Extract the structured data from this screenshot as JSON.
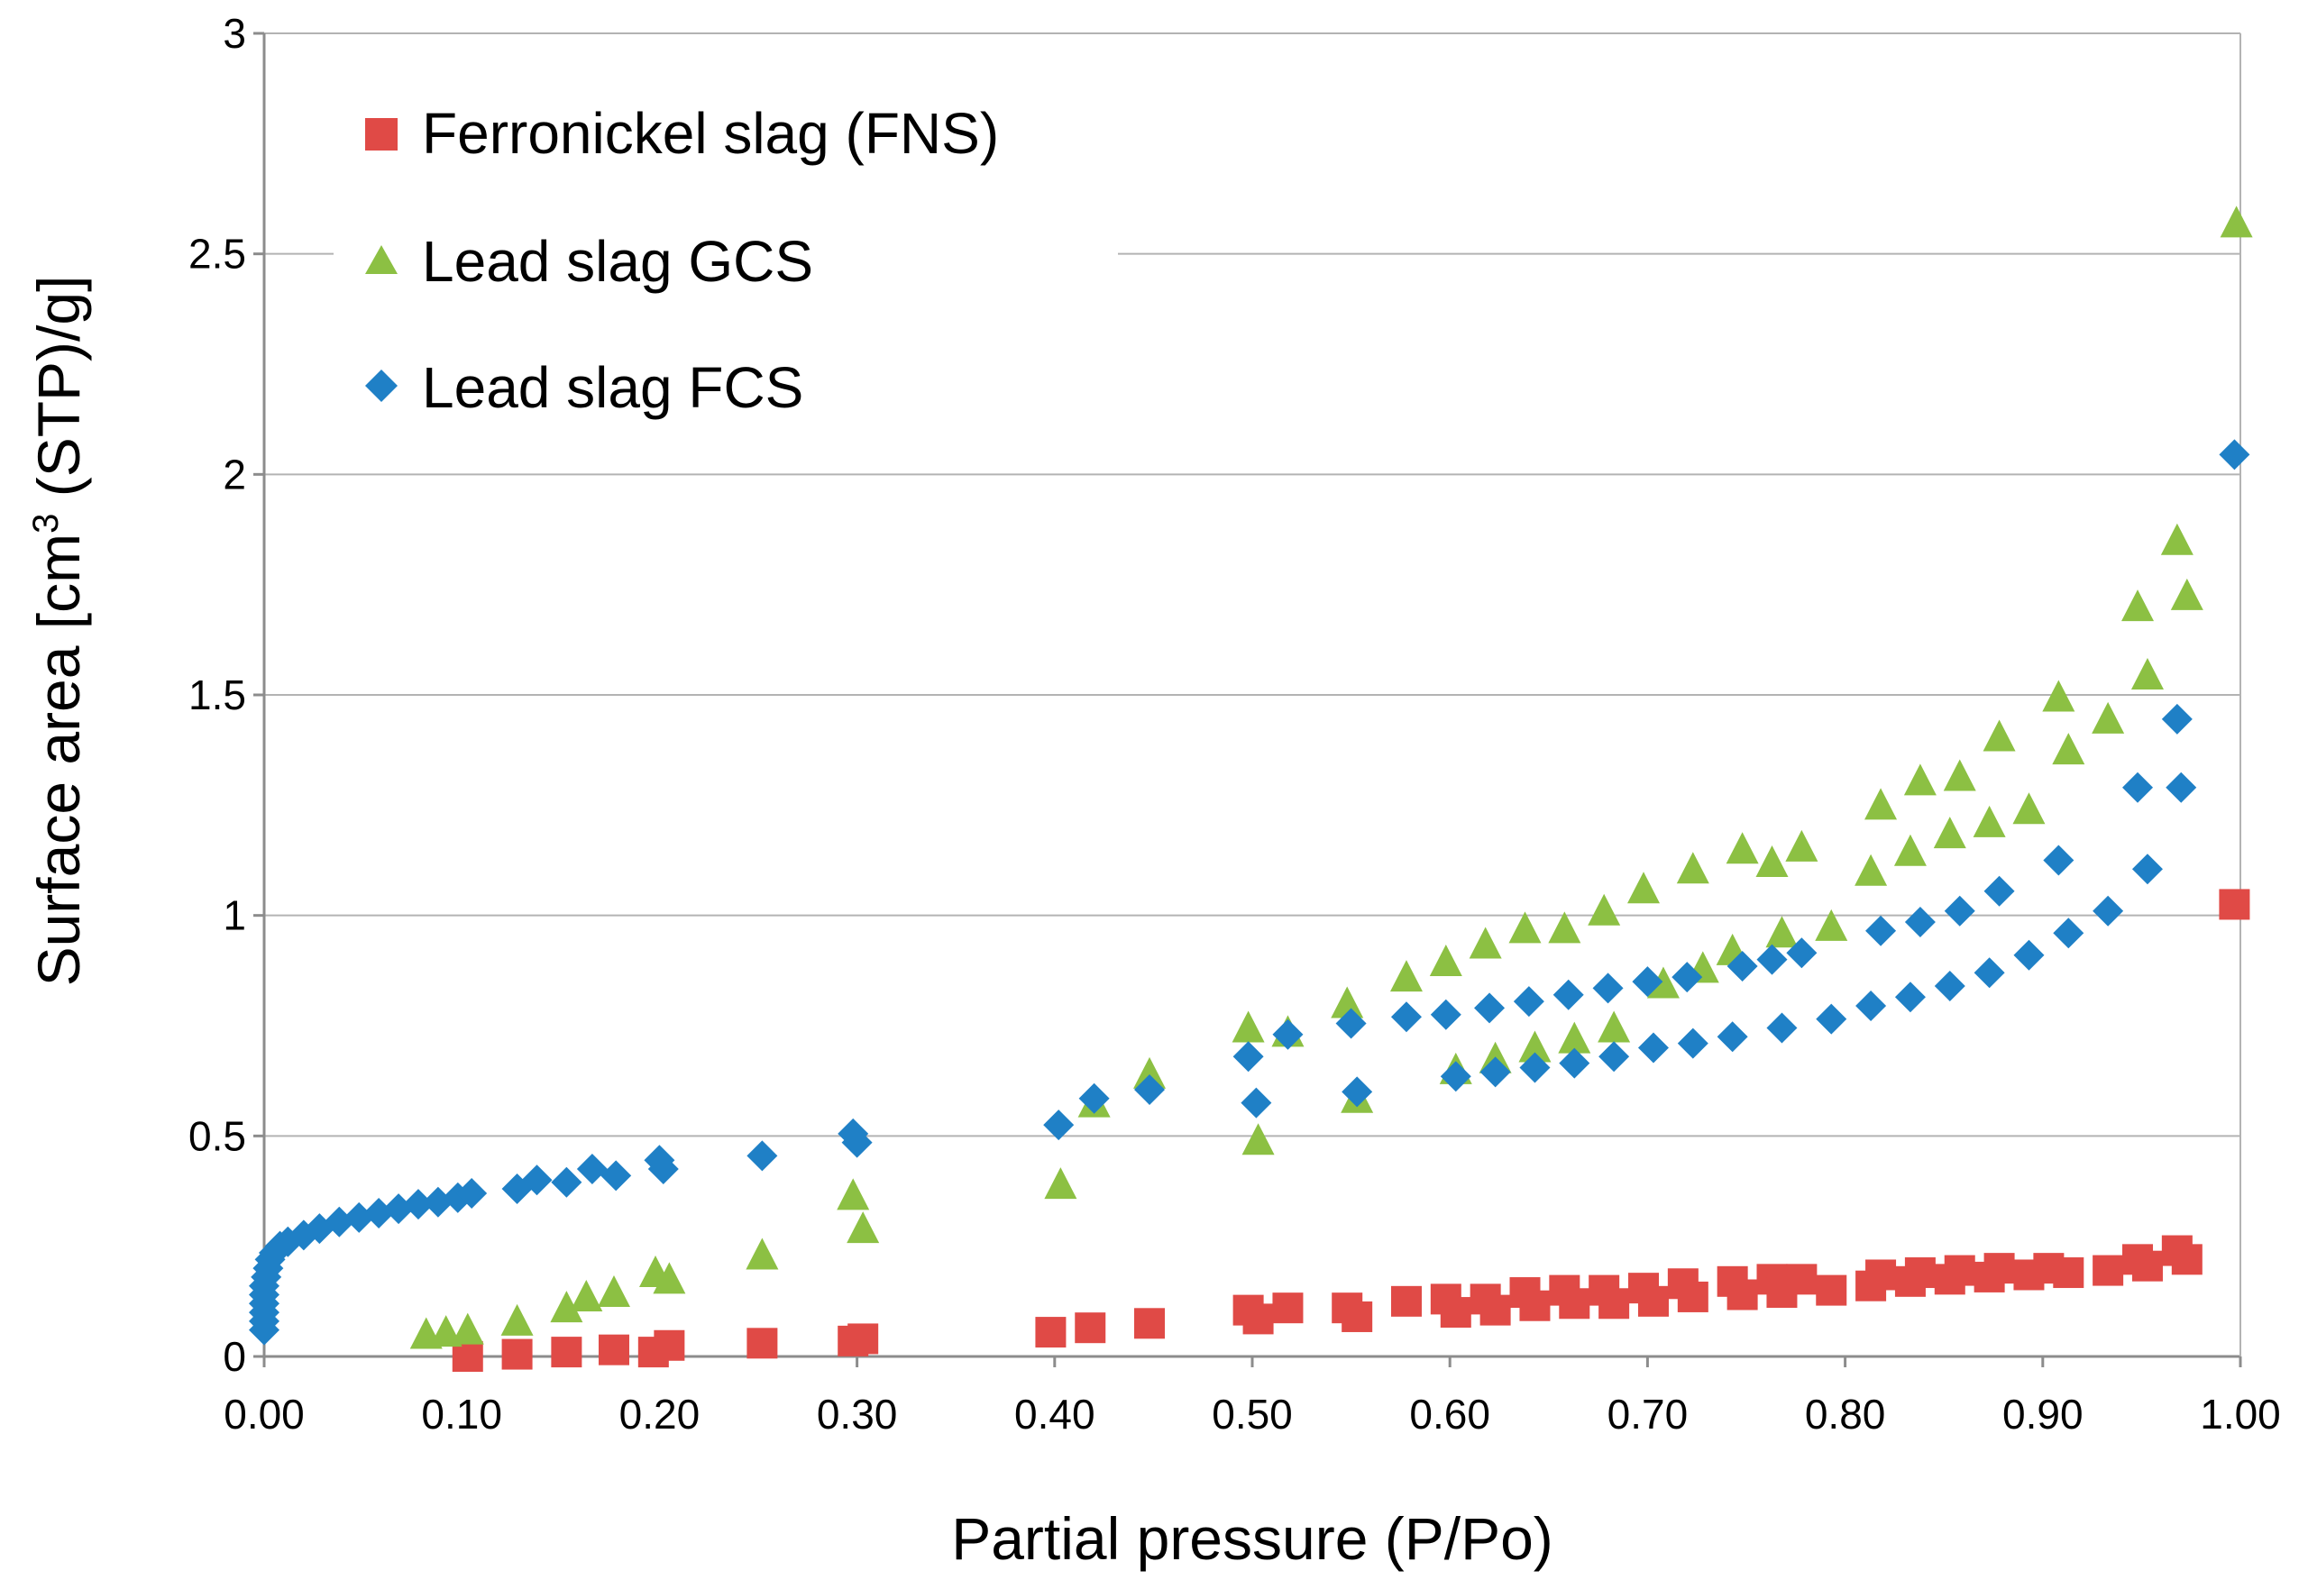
{
  "chart_data": {
    "type": "scatter",
    "title": "",
    "xlabel": "Partial pressure (P/Po)",
    "ylabel_main": "Surface area [cm",
    "ylabel_sup": "3",
    "ylabel_rest": " (STP)/g]",
    "xlim": [
      0,
      1
    ],
    "ylim": [
      0,
      3
    ],
    "x_ticks": [
      "0.00",
      "0.10",
      "0.20",
      "0.30",
      "0.40",
      "0.50",
      "0.60",
      "0.70",
      "0.80",
      "0.90",
      "1.00"
    ],
    "y_ticks": [
      "0",
      "0.5",
      "1",
      "1.5",
      "2",
      "2.5",
      "3"
    ],
    "grid": "horizontal",
    "legend_position": "top-left",
    "colors": {
      "FNS": "#e04a46",
      "GCS": "#8cc043",
      "FCS": "#1f80c6",
      "grid": "#b3b3b3",
      "axis": "#8c8c8c"
    },
    "series": [
      {
        "key": "FNS",
        "name": "Ferronickel slag (FNS)",
        "marker": "square",
        "points": [
          [
            0.103,
            0.0
          ],
          [
            0.128,
            0.005
          ],
          [
            0.153,
            0.01
          ],
          [
            0.177,
            0.015
          ],
          [
            0.197,
            0.01
          ],
          [
            0.205,
            0.025
          ],
          [
            0.252,
            0.03
          ],
          [
            0.298,
            0.035
          ],
          [
            0.303,
            0.04
          ],
          [
            0.398,
            0.055
          ],
          [
            0.418,
            0.065
          ],
          [
            0.448,
            0.075
          ],
          [
            0.498,
            0.105
          ],
          [
            0.503,
            0.085
          ],
          [
            0.518,
            0.11
          ],
          [
            0.548,
            0.11
          ],
          [
            0.553,
            0.09
          ],
          [
            0.578,
            0.125
          ],
          [
            0.598,
            0.13
          ],
          [
            0.603,
            0.1
          ],
          [
            0.618,
            0.13
          ],
          [
            0.623,
            0.105
          ],
          [
            0.638,
            0.145
          ],
          [
            0.643,
            0.115
          ],
          [
            0.658,
            0.15
          ],
          [
            0.663,
            0.12
          ],
          [
            0.678,
            0.15
          ],
          [
            0.683,
            0.12
          ],
          [
            0.698,
            0.155
          ],
          [
            0.703,
            0.125
          ],
          [
            0.718,
            0.165
          ],
          [
            0.723,
            0.135
          ],
          [
            0.743,
            0.17
          ],
          [
            0.748,
            0.14
          ],
          [
            0.763,
            0.175
          ],
          [
            0.768,
            0.145
          ],
          [
            0.778,
            0.175
          ],
          [
            0.793,
            0.15
          ],
          [
            0.813,
            0.16
          ],
          [
            0.818,
            0.185
          ],
          [
            0.833,
            0.17
          ],
          [
            0.838,
            0.19
          ],
          [
            0.853,
            0.175
          ],
          [
            0.858,
            0.195
          ],
          [
            0.873,
            0.18
          ],
          [
            0.878,
            0.2
          ],
          [
            0.893,
            0.185
          ],
          [
            0.903,
            0.2
          ],
          [
            0.913,
            0.19
          ],
          [
            0.933,
            0.195
          ],
          [
            0.948,
            0.22
          ],
          [
            0.953,
            0.205
          ],
          [
            0.968,
            0.24
          ],
          [
            0.973,
            0.22
          ],
          [
            0.997,
            1.025
          ]
        ]
      },
      {
        "key": "GCS",
        "name": "Lead slag GCS",
        "marker": "triangle",
        "points": [
          [
            0.082,
            0.05
          ],
          [
            0.092,
            0.055
          ],
          [
            0.103,
            0.06
          ],
          [
            0.128,
            0.08
          ],
          [
            0.153,
            0.11
          ],
          [
            0.163,
            0.135
          ],
          [
            0.177,
            0.145
          ],
          [
            0.198,
            0.19
          ],
          [
            0.205,
            0.175
          ],
          [
            0.252,
            0.23
          ],
          [
            0.298,
            0.365
          ],
          [
            0.303,
            0.29
          ],
          [
            0.403,
            0.39
          ],
          [
            0.42,
            0.575
          ],
          [
            0.448,
            0.64
          ],
          [
            0.498,
            0.745
          ],
          [
            0.503,
            0.49
          ],
          [
            0.518,
            0.735
          ],
          [
            0.548,
            0.8
          ],
          [
            0.553,
            0.585
          ],
          [
            0.578,
            0.86
          ],
          [
            0.598,
            0.895
          ],
          [
            0.603,
            0.65
          ],
          [
            0.618,
            0.935
          ],
          [
            0.623,
            0.675
          ],
          [
            0.638,
            0.97
          ],
          [
            0.643,
            0.7
          ],
          [
            0.658,
            0.97
          ],
          [
            0.663,
            0.72
          ],
          [
            0.678,
            1.01
          ],
          [
            0.683,
            0.745
          ],
          [
            0.698,
            1.06
          ],
          [
            0.708,
            0.845
          ],
          [
            0.723,
            1.105
          ],
          [
            0.728,
            0.88
          ],
          [
            0.743,
            0.92
          ],
          [
            0.748,
            1.15
          ],
          [
            0.763,
            1.12
          ],
          [
            0.768,
            0.96
          ],
          [
            0.778,
            1.155
          ],
          [
            0.793,
            0.975
          ],
          [
            0.813,
            1.1
          ],
          [
            0.818,
            1.25
          ],
          [
            0.833,
            1.145
          ],
          [
            0.838,
            1.305
          ],
          [
            0.853,
            1.185
          ],
          [
            0.858,
            1.315
          ],
          [
            0.873,
            1.21
          ],
          [
            0.878,
            1.405
          ],
          [
            0.893,
            1.24
          ],
          [
            0.908,
            1.495
          ],
          [
            0.913,
            1.375
          ],
          [
            0.933,
            1.445
          ],
          [
            0.948,
            1.7
          ],
          [
            0.953,
            1.545
          ],
          [
            0.968,
            1.85
          ],
          [
            0.973,
            1.725
          ],
          [
            0.998,
            2.57
          ]
        ]
      },
      {
        "key": "FCS",
        "name": "Lead slag FCS",
        "marker": "diamond",
        "points": [
          [
            0.0,
            0.06
          ],
          [
            0.0,
            0.08
          ],
          [
            0.0,
            0.1
          ],
          [
            0.0,
            0.12
          ],
          [
            0.0,
            0.14
          ],
          [
            0.0,
            0.16
          ],
          [
            0.001,
            0.18
          ],
          [
            0.002,
            0.2
          ],
          [
            0.003,
            0.22
          ],
          [
            0.005,
            0.235
          ],
          [
            0.008,
            0.25
          ],
          [
            0.012,
            0.26
          ],
          [
            0.02,
            0.275
          ],
          [
            0.028,
            0.29
          ],
          [
            0.038,
            0.305
          ],
          [
            0.048,
            0.315
          ],
          [
            0.058,
            0.325
          ],
          [
            0.068,
            0.335
          ],
          [
            0.078,
            0.345
          ],
          [
            0.088,
            0.35
          ],
          [
            0.098,
            0.36
          ],
          [
            0.105,
            0.37
          ],
          [
            0.128,
            0.38
          ],
          [
            0.138,
            0.4
          ],
          [
            0.153,
            0.395
          ],
          [
            0.166,
            0.425
          ],
          [
            0.178,
            0.41
          ],
          [
            0.2,
            0.445
          ],
          [
            0.202,
            0.425
          ],
          [
            0.252,
            0.455
          ],
          [
            0.298,
            0.505
          ],
          [
            0.3,
            0.485
          ],
          [
            0.402,
            0.525
          ],
          [
            0.42,
            0.585
          ],
          [
            0.448,
            0.605
          ],
          [
            0.498,
            0.68
          ],
          [
            0.502,
            0.575
          ],
          [
            0.518,
            0.73
          ],
          [
            0.55,
            0.755
          ],
          [
            0.553,
            0.6
          ],
          [
            0.578,
            0.77
          ],
          [
            0.598,
            0.775
          ],
          [
            0.603,
            0.635
          ],
          [
            0.62,
            0.79
          ],
          [
            0.623,
            0.645
          ],
          [
            0.64,
            0.805
          ],
          [
            0.643,
            0.655
          ],
          [
            0.66,
            0.82
          ],
          [
            0.663,
            0.665
          ],
          [
            0.68,
            0.835
          ],
          [
            0.683,
            0.68
          ],
          [
            0.7,
            0.85
          ],
          [
            0.703,
            0.7
          ],
          [
            0.72,
            0.86
          ],
          [
            0.723,
            0.71
          ],
          [
            0.743,
            0.725
          ],
          [
            0.748,
            0.885
          ],
          [
            0.763,
            0.9
          ],
          [
            0.768,
            0.745
          ],
          [
            0.778,
            0.915
          ],
          [
            0.793,
            0.765
          ],
          [
            0.813,
            0.795
          ],
          [
            0.818,
            0.965
          ],
          [
            0.833,
            0.815
          ],
          [
            0.838,
            0.985
          ],
          [
            0.853,
            0.84
          ],
          [
            0.858,
            1.01
          ],
          [
            0.873,
            0.87
          ],
          [
            0.878,
            1.055
          ],
          [
            0.893,
            0.91
          ],
          [
            0.908,
            1.125
          ],
          [
            0.913,
            0.96
          ],
          [
            0.933,
            1.01
          ],
          [
            0.948,
            1.29
          ],
          [
            0.953,
            1.105
          ],
          [
            0.968,
            1.445
          ],
          [
            0.97,
            1.29
          ],
          [
            0.997,
            2.045
          ]
        ]
      }
    ]
  }
}
